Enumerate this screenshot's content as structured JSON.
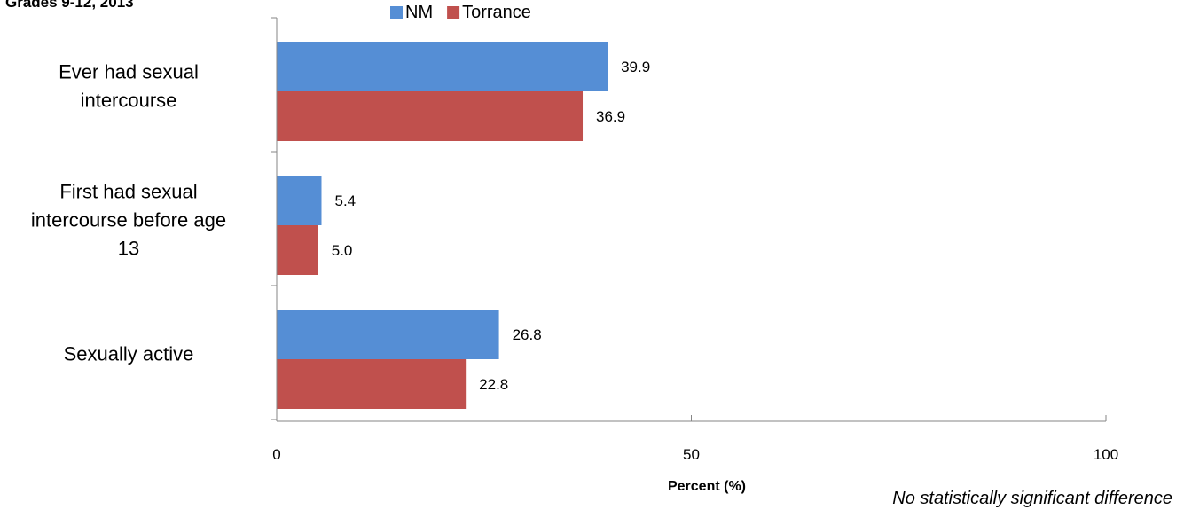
{
  "chart_data": {
    "type": "bar",
    "orientation": "horizontal",
    "subtitle": "Grades 9-12, 2013",
    "categories": [
      [
        "Ever had sexual",
        "intercourse"
      ],
      [
        "First had sexual",
        "intercourse before age",
        "13"
      ],
      [
        "Sexually active"
      ]
    ],
    "series": [
      {
        "name": "NM",
        "color": "#558ED5",
        "values": [
          39.9,
          5.4,
          26.8
        ]
      },
      {
        "name": "Torrance",
        "color": "#C0504D",
        "values": [
          36.9,
          5.0,
          22.8
        ]
      }
    ],
    "data_labels": [
      [
        "39.9",
        "5.4",
        "26.8"
      ],
      [
        "36.9",
        "5.0",
        "22.8"
      ]
    ],
    "xlabel": "Percent (%)",
    "xlim": [
      0,
      100
    ],
    "xticks": [
      0,
      50,
      100
    ],
    "grid": false,
    "legend_position": "top"
  },
  "footnote": "No statistically significant difference"
}
